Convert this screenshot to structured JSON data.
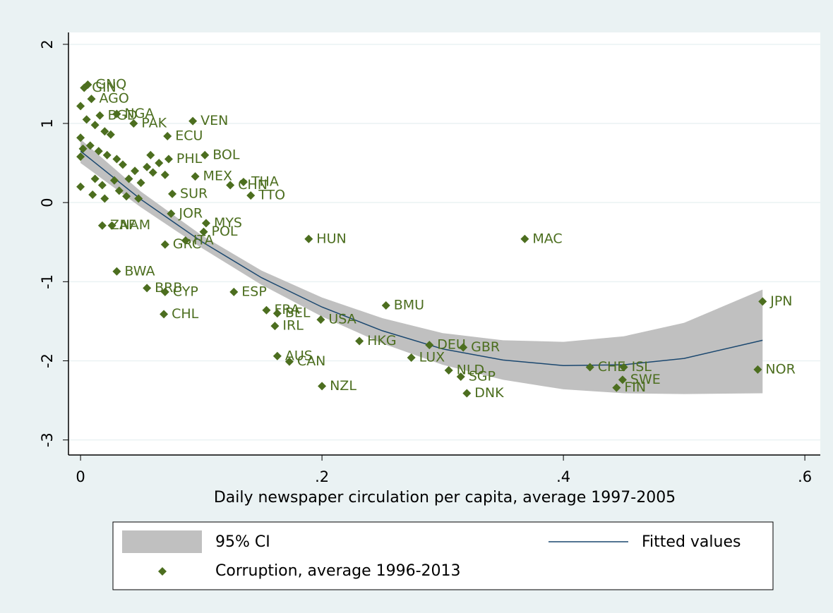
{
  "chart_data": {
    "type": "scatter",
    "x_label": "Daily newspaper circulation per capita, average 1997-2005",
    "xlim": [
      -0.01,
      0.6128
    ],
    "ylim": [
      -3.19,
      2.15
    ],
    "xticks": [
      0,
      {
        "value": 0.2,
        "label": ".2"
      },
      {
        "value": 0.4,
        "label": ".4"
      },
      {
        "value": 0.6,
        "label": ".6"
      }
    ],
    "yticks": [
      -3,
      -2,
      -1,
      0,
      1,
      2
    ],
    "grid": true,
    "series": [
      {
        "type": "area",
        "name": "95% CI",
        "color": "#c0c0c0",
        "x": [
          0,
          0.05,
          0.1,
          0.15,
          0.2,
          0.25,
          0.3,
          0.35,
          0.4,
          0.45,
          0.5,
          0.565
        ],
        "lower": [
          0.5,
          -0.06,
          -0.57,
          -1.04,
          -1.44,
          -1.78,
          -2.05,
          -2.24,
          -2.36,
          -2.41,
          -2.42,
          -2.41
        ],
        "upper": [
          0.8,
          0.14,
          -0.41,
          -0.86,
          -1.2,
          -1.46,
          -1.65,
          -1.74,
          -1.76,
          -1.69,
          -1.52,
          -1.1
        ]
      },
      {
        "type": "line",
        "name": "Fitted values",
        "color": "#1a476f",
        "x": [
          0,
          0.05,
          0.1,
          0.15,
          0.2,
          0.25,
          0.3,
          0.35,
          0.4,
          0.45,
          0.5,
          0.565
        ],
        "values": [
          0.65,
          0.04,
          -0.49,
          -0.95,
          -1.32,
          -1.62,
          -1.85,
          -1.99,
          -2.06,
          -2.05,
          -1.97,
          -1.74
        ]
      },
      {
        "type": "scatter",
        "name": "Corruption, average 1996-2013",
        "color": "#4c6e1f",
        "x": [
          0.006,
          0.003,
          0.009,
          0.03,
          0.044,
          0.016,
          0.093,
          0.072,
          0.103,
          0.095,
          0.135,
          0.141,
          0.124,
          0.076,
          0.075,
          0.104,
          0.102,
          0.189,
          0.368,
          0.03,
          0.055,
          0.07,
          0.127,
          0.069,
          0.253,
          0.154,
          0.163,
          0.199,
          0.161,
          0.231,
          0.289,
          0.317,
          0.274,
          0.163,
          0.173,
          0.305,
          0.315,
          0.2,
          0.32,
          0.422,
          0.45,
          0.449,
          0.444,
          0.561,
          0.565,
          0.07,
          0.087,
          0.018,
          0.026,
          0.073,
          0,
          0.005,
          0.012,
          0.02,
          0.025,
          0,
          0.008,
          0.015,
          0.022,
          0.03,
          0,
          0.035,
          0.045,
          0.055,
          0.06,
          0.04,
          0.028,
          0.018,
          0,
          0.01,
          0.02,
          0.032,
          0.05,
          0.065,
          0.048,
          0.038,
          0.002,
          0.07,
          0.058,
          0.012
        ],
        "values": [
          1.49,
          1.45,
          1.31,
          1.12,
          1.0,
          1.1,
          1.03,
          0.84,
          0.6,
          0.33,
          0.26,
          0.09,
          0.22,
          0.11,
          -0.14,
          -0.26,
          -0.37,
          -0.46,
          -0.46,
          -0.87,
          -1.08,
          -1.13,
          -1.13,
          -1.41,
          -1.3,
          -1.36,
          -1.4,
          -1.48,
          -1.56,
          -1.75,
          -1.8,
          -1.83,
          -1.96,
          -1.94,
          -2.01,
          -2.12,
          -2.2,
          -2.32,
          -2.41,
          -2.08,
          -2.08,
          -2.24,
          -2.34,
          -2.11,
          -1.25,
          -0.53,
          -0.48,
          -0.29,
          -0.29,
          0.55,
          1.22,
          1.05,
          0.98,
          0.9,
          0.86,
          0.82,
          0.72,
          0.65,
          0.6,
          0.55,
          0.58,
          0.48,
          0.4,
          0.45,
          0.38,
          0.3,
          0.28,
          0.22,
          0.2,
          0.1,
          0.05,
          0.15,
          0.25,
          0.5,
          0.05,
          0.08,
          0.68,
          0.35,
          0.6,
          0.3
        ],
        "labels": [
          "GNQ",
          "GIN",
          "AGO",
          "NGA",
          "PAK",
          "BGD",
          "VEN",
          "ECU",
          "BOL",
          "MEX",
          "THA",
          "TTO",
          "CHN",
          "SUR",
          "JOR",
          "MYS",
          "POL",
          "HUN",
          "MAC",
          "BWA",
          "BRB",
          "CYP",
          "ESP",
          "CHL",
          "BMU",
          "FRA",
          "BEL",
          "USA",
          "IRL",
          "HKG",
          "DEU",
          "GBR",
          "LUX",
          "AUS",
          "CAN",
          "NLD",
          "SGP",
          "NZL",
          "DNK",
          "CHE",
          "ISL",
          "SWE",
          "FIN",
          "NOR",
          "JPN",
          "GRC",
          "ITA",
          "ZAF",
          "NAM",
          "PHL",
          null,
          null,
          null,
          null,
          null,
          null,
          null,
          null,
          null,
          null,
          null,
          null,
          null,
          null,
          null,
          null,
          null,
          null,
          null,
          null,
          null,
          null,
          null,
          null,
          null,
          null,
          null,
          null,
          null,
          null
        ]
      }
    ]
  }
}
